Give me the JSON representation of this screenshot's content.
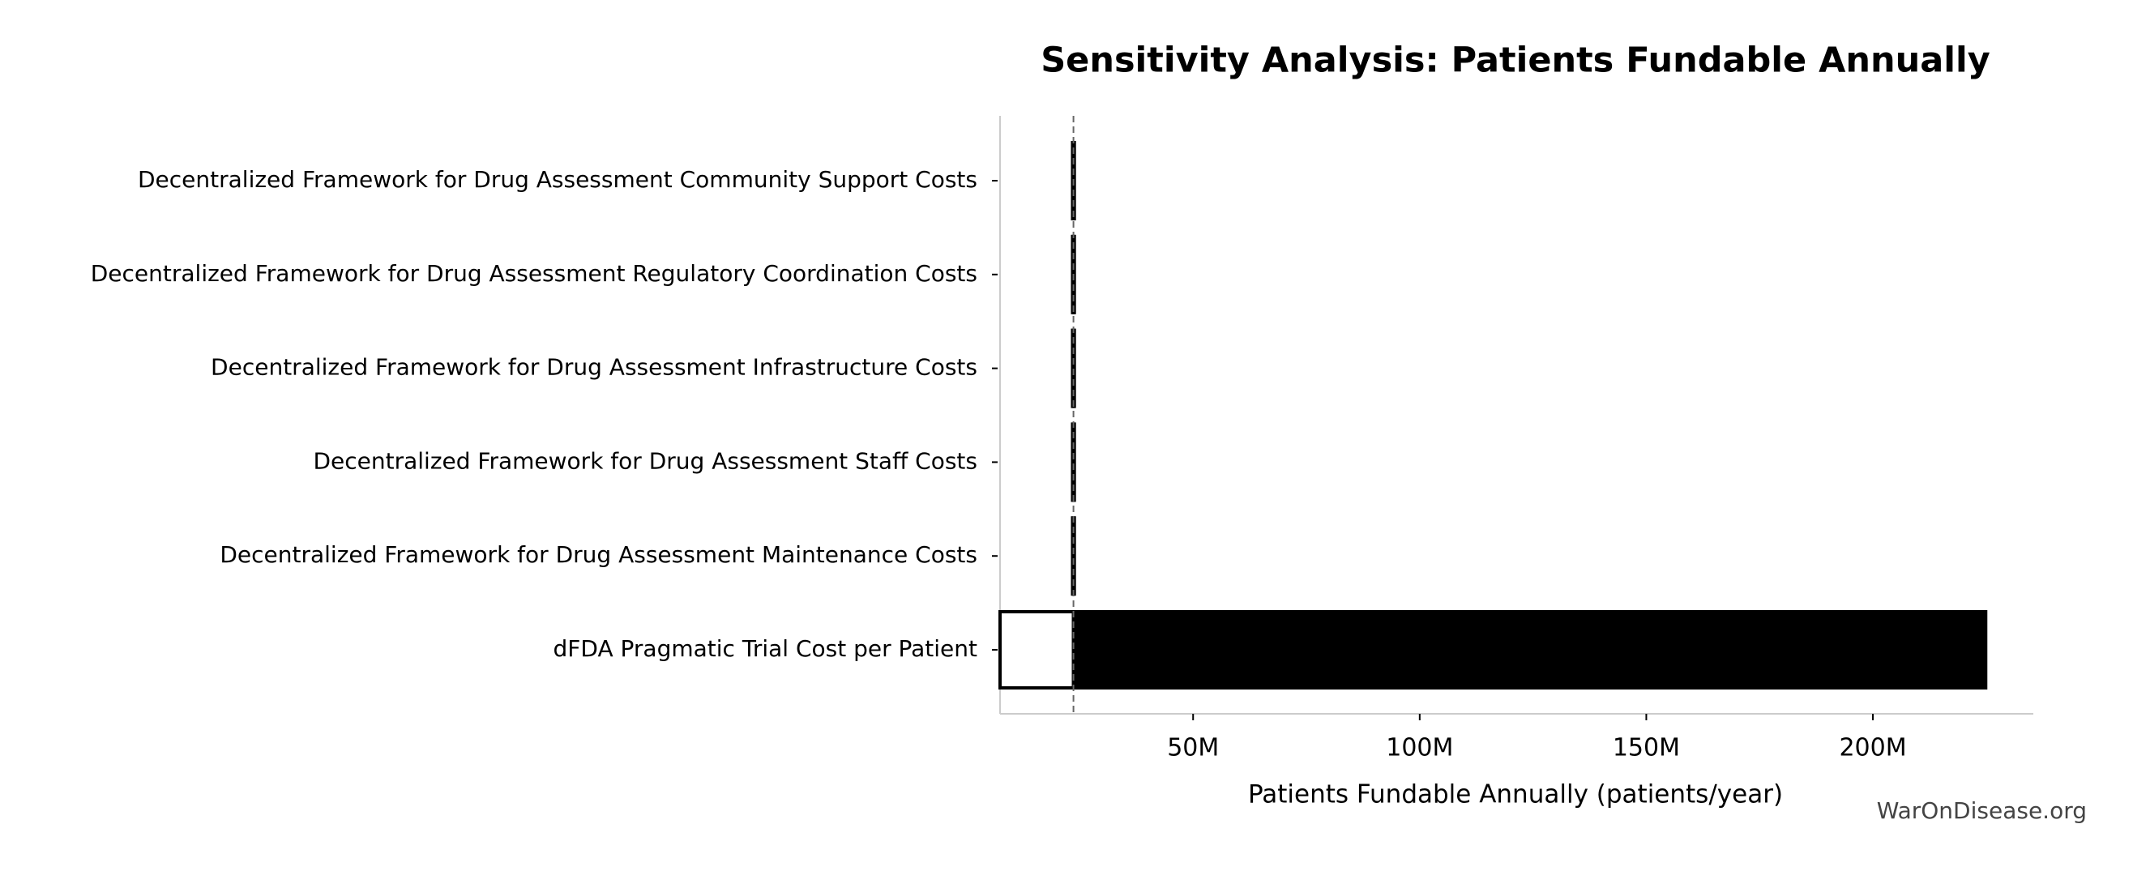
{
  "chart_data": {
    "type": "tornado",
    "title": "Sensitivity Analysis: Patients Fundable Annually",
    "xlabel": "Patients Fundable Annually (patients/year)",
    "watermark": "WarOnDisease.org",
    "categories": [
      "Decentralized Framework for Drug Assessment Community Support Costs",
      "Decentralized Framework for Drug Assessment Regulatory Coordination Costs",
      "Decentralized Framework for Drug Assessment Infrastructure Costs",
      "Decentralized Framework for Drug Assessment Staff Costs",
      "Decentralized Framework for Drug Assessment Maintenance Costs",
      "dFDA Pragmatic Trial Cost per Patient"
    ],
    "baseline": 23600000,
    "low_values": [
      23400000,
      23400000,
      23400000,
      23400000,
      23400000,
      7400000
    ],
    "high_values": [
      23800000,
      23800000,
      23800000,
      23800000,
      23800000,
      224900000
    ],
    "low_color": "#ffffff",
    "high_color": "#000000",
    "xlim": [
      7400000,
      235400000
    ],
    "xticks": [
      {
        "value": 50000000,
        "label": "50M"
      },
      {
        "value": 100000000,
        "label": "100M"
      },
      {
        "value": 150000000,
        "label": "150M"
      },
      {
        "value": 200000000,
        "label": "200M"
      }
    ]
  }
}
